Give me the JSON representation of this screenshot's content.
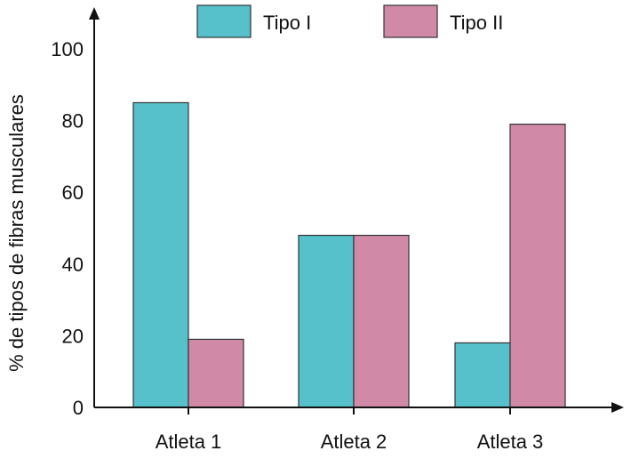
{
  "chart_data": {
    "type": "bar",
    "categories": [
      "Atleta 1",
      "Atleta 2",
      "Atleta 3"
    ],
    "series": [
      {
        "name": "Tipo I",
        "values": [
          85,
          48,
          18
        ],
        "color": "#56c1cb"
      },
      {
        "name": "Tipo II",
        "values": [
          19,
          48,
          79
        ],
        "color": "#d08aa8"
      }
    ],
    "ylabel": "% de tipos de fibras musculares",
    "xlabel": "",
    "ylim": [
      0,
      100
    ],
    "yticks": [
      "0",
      "20",
      "40",
      "60",
      "80",
      "100"
    ],
    "legend_position": "top",
    "grid": false
  }
}
